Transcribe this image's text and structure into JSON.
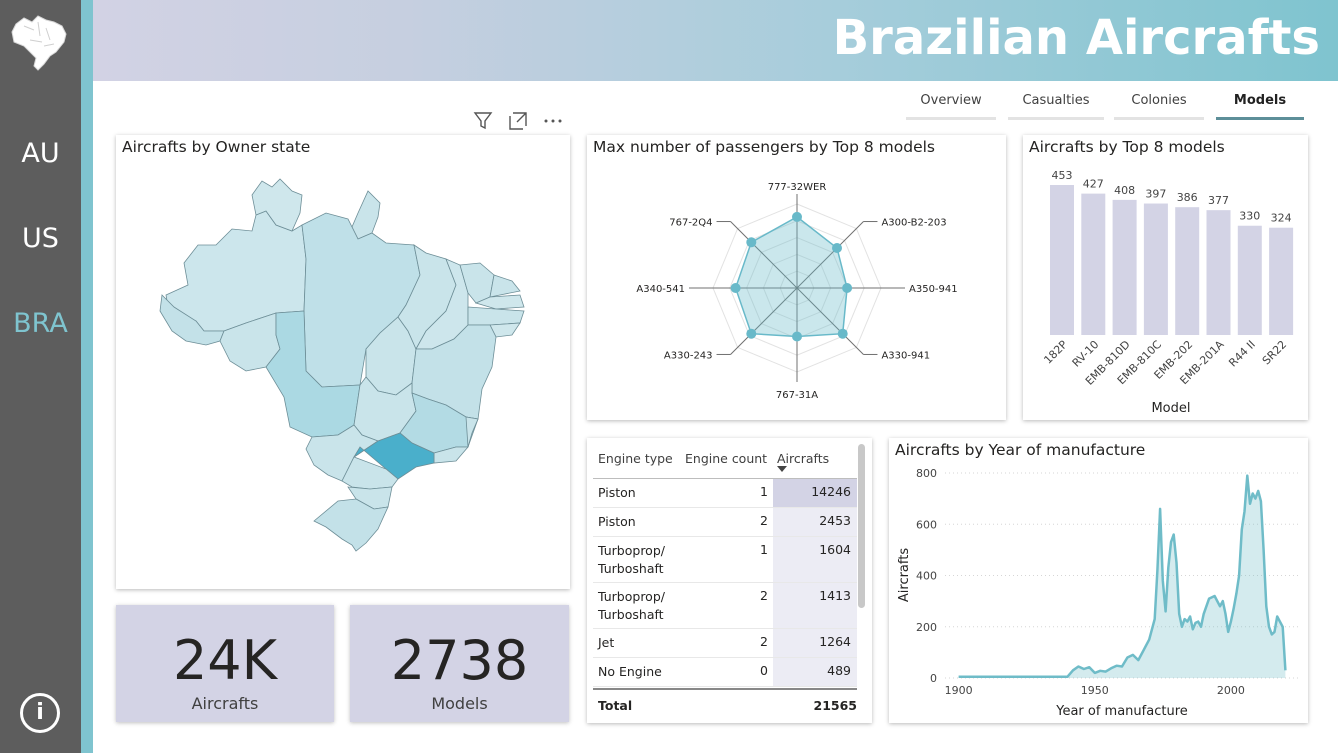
{
  "header": {
    "title": "Brazilian Aircrafts"
  },
  "nav": {
    "items": [
      {
        "label": "AU",
        "active": false
      },
      {
        "label": "US",
        "active": false
      },
      {
        "label": "BRA",
        "active": true
      }
    ],
    "info_icon": "info-icon",
    "logo_icon": "brazil-map-icon"
  },
  "tabs": [
    {
      "label": "Overview",
      "active": false
    },
    {
      "label": "Casualties",
      "active": false
    },
    {
      "label": "Colonies",
      "active": false
    },
    {
      "label": "Models",
      "active": true
    }
  ],
  "visual_header_icons": [
    "filter-icon",
    "focus-mode-icon",
    "more-options-icon"
  ],
  "map": {
    "title": "Aircrafts by Owner state",
    "highlight_color": "#4aafcb",
    "fill_color": "#c9e4ea"
  },
  "kpis": [
    {
      "value": "24K",
      "label": "Aircrafts"
    },
    {
      "value": "2738",
      "label": "Models"
    }
  ],
  "radar": {
    "title": "Max number of passengers by Top 8 models",
    "axes": [
      "777-32WER",
      "A300-B2-203",
      "A350-941",
      "A330-941",
      "767-31A",
      "A330-243",
      "A340-541",
      "767-2Q4"
    ]
  },
  "table": {
    "headers": [
      "Engine type",
      "Engine count",
      "Aircrafts"
    ],
    "rows": [
      {
        "engine_type": "Piston",
        "engine_count": "1",
        "aircrafts": "14246"
      },
      {
        "engine_type": "Piston",
        "engine_count": "2",
        "aircrafts": "2453"
      },
      {
        "engine_type": "Turboprop/ Turboshaft",
        "engine_count": "1",
        "aircrafts": "1604"
      },
      {
        "engine_type": "Turboprop/ Turboshaft",
        "engine_count": "2",
        "aircrafts": "1413"
      },
      {
        "engine_type": "Jet",
        "engine_count": "2",
        "aircrafts": "1264"
      },
      {
        "engine_type": "No Engine",
        "engine_count": "0",
        "aircrafts": "489"
      }
    ],
    "total_label": "Total",
    "total_value": "21565"
  },
  "chart_data": [
    {
      "type": "radar",
      "title": "Max number of passengers by Top 8 models",
      "categories": [
        "777-32WER",
        "A300-B2-203",
        "A350-941",
        "A330-941",
        "767-31A",
        "A330-243",
        "A340-541",
        "767-2Q4"
      ],
      "values": [
        440,
        350,
        310,
        400,
        300,
        400,
        380,
        400
      ],
      "rmax": 520,
      "color": "#68b9c9"
    },
    {
      "type": "bar",
      "title": "Aircrafts by Top 8 models",
      "categories": [
        "182P",
        "RV-10",
        "EMB-810D",
        "EMB-810C",
        "EMB-202",
        "EMB-201A",
        "R44 II",
        "SR22"
      ],
      "values": [
        453,
        427,
        408,
        397,
        386,
        377,
        330,
        324
      ],
      "xlabel": "Model",
      "ylabel": "",
      "ylim": [
        0,
        500
      ],
      "color": "#d3d3e5"
    },
    {
      "type": "area",
      "title": "Aircrafts by Year of manufacture",
      "xlabel": "Year of manufacture",
      "ylabel": "Aircrafts",
      "xlim": [
        1895,
        2025
      ],
      "ylim": [
        0,
        800
      ],
      "xticks": [
        1900,
        1950,
        2000
      ],
      "yticks": [
        0,
        200,
        400,
        600,
        800
      ],
      "color": "#6fbcc8",
      "x": [
        1900,
        1920,
        1940,
        1942,
        1944,
        1946,
        1948,
        1950,
        1952,
        1954,
        1956,
        1958,
        1960,
        1962,
        1964,
        1966,
        1968,
        1970,
        1972,
        1973,
        1974,
        1975,
        1976,
        1977,
        1978,
        1979,
        1980,
        1981,
        1982,
        1983,
        1984,
        1985,
        1986,
        1987,
        1988,
        1989,
        1990,
        1992,
        1994,
        1996,
        1997,
        1998,
        1999,
        2000,
        2001,
        2002,
        2003,
        2004,
        2005,
        2006,
        2007,
        2008,
        2009,
        2010,
        2011,
        2012,
        2013,
        2014,
        2015,
        2016,
        2017,
        2018,
        2019,
        2020
      ],
      "y": [
        5,
        5,
        5,
        30,
        45,
        35,
        42,
        20,
        28,
        25,
        38,
        48,
        45,
        80,
        90,
        70,
        110,
        150,
        230,
        420,
        660,
        380,
        260,
        430,
        530,
        560,
        450,
        250,
        200,
        230,
        220,
        240,
        190,
        215,
        220,
        200,
        250,
        310,
        320,
        280,
        300,
        250,
        180,
        220,
        270,
        330,
        400,
        580,
        650,
        790,
        680,
        720,
        700,
        730,
        690,
        500,
        280,
        200,
        170,
        180,
        240,
        220,
        200,
        30
      ]
    }
  ]
}
